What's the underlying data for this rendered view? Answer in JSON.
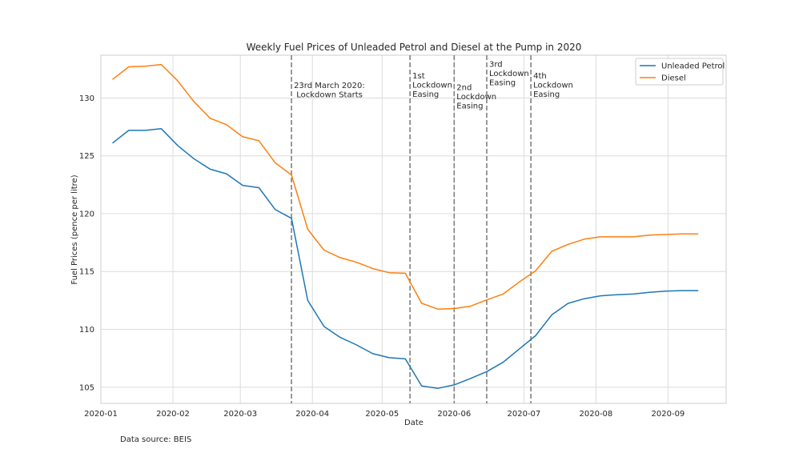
{
  "chart_data": {
    "type": "line",
    "title": "Weekly Fuel Prices of Unleaded Petrol and Diesel at the Pump in 2020",
    "xlabel": "Date",
    "ylabel": "Fuel Prices (pence per litre)",
    "x_axis": {
      "type": "date",
      "range": [
        "2020-01-01",
        "2020-09-26"
      ],
      "ticks": [
        {
          "date": "2020-01-01",
          "label": "2020-01"
        },
        {
          "date": "2020-02-01",
          "label": "2020-02"
        },
        {
          "date": "2020-03-01",
          "label": "2020-03"
        },
        {
          "date": "2020-04-01",
          "label": "2020-04"
        },
        {
          "date": "2020-05-01",
          "label": "2020-05"
        },
        {
          "date": "2020-06-01",
          "label": "2020-06"
        },
        {
          "date": "2020-07-01",
          "label": "2020-07"
        },
        {
          "date": "2020-08-01",
          "label": "2020-08"
        },
        {
          "date": "2020-09-01",
          "label": "2020-09"
        }
      ]
    },
    "y_axis": {
      "range": [
        103.6,
        133.7
      ],
      "ticks": [
        105,
        110,
        115,
        120,
        125,
        130
      ]
    },
    "grid": true,
    "legend_position": "top-right",
    "dates": [
      "2020-01-06",
      "2020-01-13",
      "2020-01-20",
      "2020-01-27",
      "2020-02-03",
      "2020-02-10",
      "2020-02-17",
      "2020-02-24",
      "2020-03-02",
      "2020-03-09",
      "2020-03-16",
      "2020-03-23",
      "2020-03-30",
      "2020-04-06",
      "2020-04-13",
      "2020-04-20",
      "2020-04-27",
      "2020-05-04",
      "2020-05-11",
      "2020-05-18",
      "2020-05-25",
      "2020-06-01",
      "2020-06-08",
      "2020-06-15",
      "2020-06-22",
      "2020-06-29",
      "2020-07-06",
      "2020-07-13",
      "2020-07-20",
      "2020-07-27",
      "2020-08-03",
      "2020-08-10",
      "2020-08-17",
      "2020-08-24",
      "2020-08-31",
      "2020-09-07",
      "2020-09-14"
    ],
    "series": [
      {
        "name": "Unleaded Petrol",
        "color": "#1f77b4",
        "values": [
          126.1,
          127.2,
          127.2,
          127.35,
          125.9,
          124.75,
          123.85,
          123.45,
          122.45,
          122.25,
          120.35,
          119.6,
          112.5,
          110.25,
          109.3,
          108.65,
          107.9,
          107.55,
          107.45,
          105.1,
          104.9,
          105.2,
          105.75,
          106.35,
          107.15,
          108.3,
          109.45,
          111.25,
          112.25,
          112.65,
          112.9,
          113.0,
          113.05,
          113.2,
          113.3,
          113.35,
          113.35
        ]
      },
      {
        "name": "Diesel",
        "color": "#ff7f0e",
        "values": [
          131.6,
          132.7,
          132.75,
          132.9,
          131.5,
          129.7,
          128.25,
          127.7,
          126.65,
          126.3,
          124.4,
          123.35,
          118.65,
          116.85,
          116.2,
          115.8,
          115.25,
          114.9,
          114.85,
          112.25,
          111.75,
          111.8,
          112.0,
          112.55,
          113.05,
          114.1,
          115.05,
          116.75,
          117.35,
          117.8,
          118.0,
          118.0,
          118.0,
          118.15,
          118.2,
          118.25,
          118.25
        ]
      }
    ],
    "events": [
      {
        "date": "2020-03-23",
        "label_lines": [
          "23rd March 2020:",
          " Lockdown Starts"
        ],
        "label_y": 130.85
      },
      {
        "date": "2020-05-13",
        "label_lines": [
          "1st",
          "Lockdown",
          "Easing"
        ],
        "label_y": 131.7
      },
      {
        "date": "2020-06-01",
        "label_lines": [
          "2nd",
          "Lockdown",
          "Easing"
        ],
        "label_y": 130.7
      },
      {
        "date": "2020-06-15",
        "label_lines": [
          "3rd",
          "Lockdown",
          "Easing"
        ],
        "label_y": 132.7
      },
      {
        "date": "2020-07-04",
        "label_lines": [
          "4th",
          "Lockdown",
          "Easing"
        ],
        "label_y": 131.7
      }
    ],
    "source_note": "Data source: BEIS"
  }
}
